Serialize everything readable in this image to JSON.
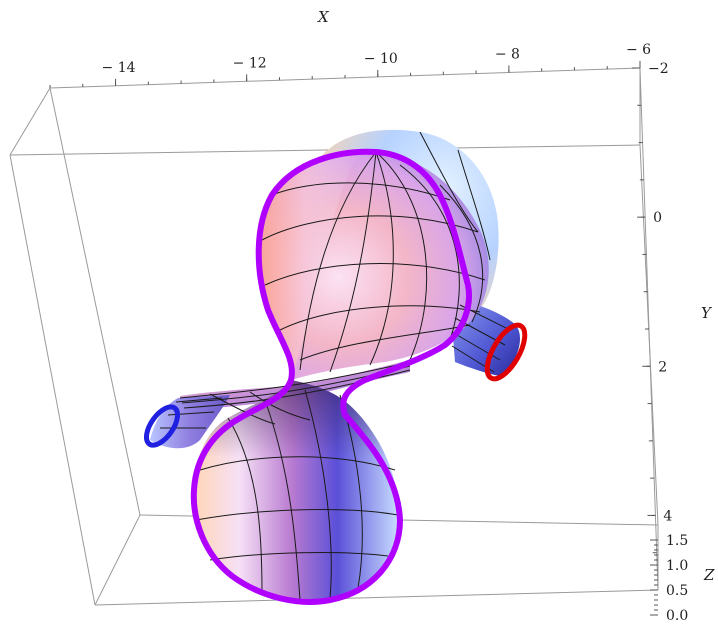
{
  "chart_data": {
    "type": "surface3d",
    "axes": {
      "x": {
        "label": "X",
        "ticks": [
          "-14",
          "-12",
          "-10",
          "-8",
          "-6"
        ],
        "range": [
          -15,
          -6
        ]
      },
      "y": {
        "label": "Y",
        "ticks": [
          "-2",
          "0",
          "2",
          "4"
        ],
        "range": [
          -2,
          5
        ]
      },
      "z": {
        "label": "Z",
        "ticks": [
          "0.0",
          "0.5",
          "1.0",
          "1.5"
        ],
        "range": [
          0,
          1.5
        ]
      }
    },
    "curves": [
      {
        "color": "#b000ff",
        "role": "outer boundary"
      },
      {
        "color": "#e00000",
        "role": "right tube end"
      },
      {
        "color": "#2020e0",
        "role": "left tube end"
      }
    ],
    "surface_colors": [
      "#ffb0a0",
      "#f8c8f0",
      "#c8d8ff",
      "#5050d0",
      "#ffd0a8"
    ],
    "box": "on",
    "mesh": "on"
  }
}
